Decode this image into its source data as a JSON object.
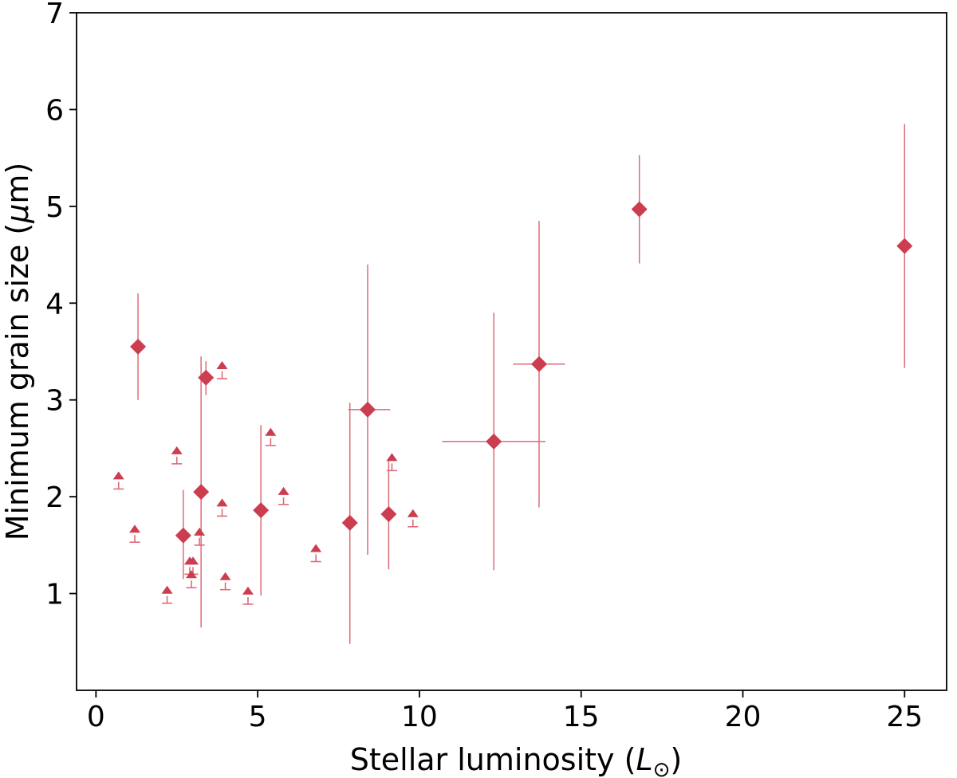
{
  "chart_data": {
    "type": "scatter",
    "title": "",
    "xlabel": "Stellar luminosity (",
    "xlabel_symbol": "L",
    "xlabel_sub": "⊙",
    "xlabel_close": ")",
    "ylabel": "Minimum grain size (",
    "ylabel_symbol": "μ",
    "ylabel_close": "m)",
    "xlim": [
      -0.6,
      26.3
    ],
    "ylim": [
      0,
      7
    ],
    "grid": false,
    "xticks": [
      0,
      5,
      10,
      15,
      20,
      25
    ],
    "yticks": [
      1,
      2,
      3,
      4,
      5,
      6,
      7
    ],
    "color": "#cc3d4f",
    "errorbar_color": "#dd6b78",
    "measurements": [
      {
        "x": 1.3,
        "y": 3.55,
        "ylo": 3.0,
        "yhi": 4.1,
        "xlo": null,
        "xhi": null
      },
      {
        "x": 3.4,
        "y": 3.23,
        "ylo": 3.05,
        "yhi": 3.4,
        "xlo": null,
        "xhi": null
      },
      {
        "x": 3.25,
        "y": 2.05,
        "ylo": 0.65,
        "yhi": 3.45,
        "xlo": null,
        "xhi": null
      },
      {
        "x": 2.7,
        "y": 1.6,
        "ylo": 1.15,
        "yhi": 2.07,
        "xlo": null,
        "xhi": null
      },
      {
        "x": 5.1,
        "y": 1.86,
        "ylo": 0.98,
        "yhi": 2.74,
        "xlo": null,
        "xhi": null
      },
      {
        "x": 7.85,
        "y": 1.73,
        "ylo": 0.48,
        "yhi": 2.97,
        "xlo": null,
        "xhi": null
      },
      {
        "x": 8.4,
        "y": 2.9,
        "ylo": 1.4,
        "yhi": 4.4,
        "xlo": 7.8,
        "xhi": 9.1
      },
      {
        "x": 9.05,
        "y": 1.82,
        "ylo": 1.25,
        "yhi": 2.4,
        "xlo": null,
        "xhi": null
      },
      {
        "x": 12.3,
        "y": 2.57,
        "ylo": 1.24,
        "yhi": 3.9,
        "xlo": 10.7,
        "xhi": 13.9
      },
      {
        "x": 13.7,
        "y": 3.37,
        "ylo": 1.89,
        "yhi": 4.85,
        "xlo": 12.9,
        "xhi": 14.5
      },
      {
        "x": 16.8,
        "y": 4.97,
        "ylo": 4.41,
        "yhi": 5.53,
        "xlo": null,
        "xhi": null
      },
      {
        "x": 25.0,
        "y": 4.59,
        "ylo": 3.33,
        "yhi": 5.85,
        "xlo": null,
        "xhi": null
      }
    ],
    "lower_limits": [
      {
        "x": 0.7,
        "y": 2.08
      },
      {
        "x": 1.2,
        "y": 1.53
      },
      {
        "x": 2.2,
        "y": 0.9
      },
      {
        "x": 2.5,
        "y": 2.34
      },
      {
        "x": 2.9,
        "y": 1.2
      },
      {
        "x": 3.0,
        "y": 1.2
      },
      {
        "x": 2.95,
        "y": 1.06
      },
      {
        "x": 3.2,
        "y": 1.5
      },
      {
        "x": 3.9,
        "y": 3.22
      },
      {
        "x": 3.9,
        "y": 1.8
      },
      {
        "x": 4.0,
        "y": 1.04
      },
      {
        "x": 4.7,
        "y": 0.89
      },
      {
        "x": 5.4,
        "y": 2.53
      },
      {
        "x": 5.8,
        "y": 1.92
      },
      {
        "x": 6.8,
        "y": 1.33
      },
      {
        "x": 9.15,
        "y": 2.27
      },
      {
        "x": 9.8,
        "y": 1.69
      }
    ]
  }
}
